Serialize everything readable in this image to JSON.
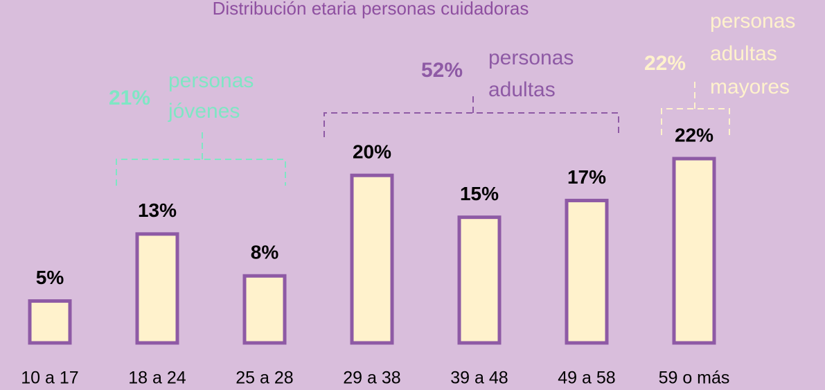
{
  "chart_data": {
    "type": "bar",
    "title": "Distribución etaria personas cuidadoras",
    "categories": [
      "10 a 17",
      "18 a 24",
      "25 a 28",
      "29 a 38",
      "39 a 48",
      "49 a 58",
      "59 o más"
    ],
    "values": [
      5,
      13,
      8,
      20,
      15,
      17,
      22
    ],
    "value_labels": [
      "5%",
      "13%",
      "8%",
      "20%",
      "15%",
      "17%",
      "22%"
    ],
    "color": "#fff2cc",
    "edge_color": "#8e5aa5",
    "ylim": [
      0,
      22
    ],
    "groups": [
      {
        "value": 21,
        "value_label": "21%",
        "label_lines": [
          "personas",
          "jóvenes"
        ],
        "color": "#7fe6c4"
      },
      {
        "value": 52,
        "value_label": "52%",
        "label_lines": [
          "personas",
          "adultas"
        ],
        "color": "#8e5aa5"
      },
      {
        "value": 22,
        "value_label": "22%",
        "label_lines": [
          "personas",
          "adultas",
          "mayores"
        ],
        "color": "#fff2cc"
      }
    ]
  }
}
